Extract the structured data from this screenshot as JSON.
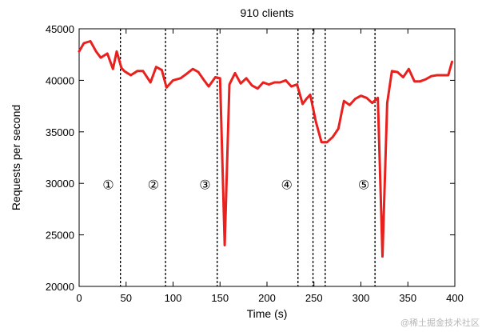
{
  "chart_data": {
    "type": "line",
    "title": "910 clients",
    "xlabel": "Time (s)",
    "ylabel": "Requests per second",
    "xlim": [
      0,
      400
    ],
    "ylim": [
      20000,
      45000
    ],
    "x_ticks": [
      0,
      50,
      100,
      150,
      200,
      250,
      300,
      350,
      400
    ],
    "y_ticks": [
      20000,
      25000,
      30000,
      35000,
      40000,
      45000
    ],
    "grid": false,
    "legend": "none",
    "line_color": "#e8201e",
    "series": [
      {
        "x": [
          0,
          5,
          12,
          18,
          23,
          30,
          36,
          40,
          45,
          48,
          55,
          62,
          68,
          76,
          82,
          88,
          93,
          100,
          108,
          114,
          121,
          127,
          133,
          138,
          145,
          150,
          155,
          160,
          166,
          172,
          178,
          184,
          190,
          196,
          202,
          208,
          214,
          220,
          226,
          232,
          238,
          242,
          246,
          252,
          258,
          264,
          270,
          276,
          282,
          288,
          294,
          300,
          306,
          312,
          318,
          323,
          328,
          333,
          339,
          345,
          351,
          357,
          363,
          369,
          375,
          381,
          388,
          393,
          397
        ],
        "y": [
          42800,
          43600,
          43800,
          42800,
          42200,
          42600,
          41100,
          42800,
          41200,
          40900,
          40500,
          40900,
          40900,
          39800,
          41300,
          41000,
          39300,
          40000,
          40200,
          40600,
          41100,
          40800,
          40000,
          39400,
          40300,
          40200,
          24000,
          39600,
          40700,
          39700,
          40200,
          39500,
          39200,
          39800,
          39600,
          39800,
          39800,
          40000,
          39400,
          39600,
          37700,
          38200,
          38600,
          36000,
          34000,
          34000,
          34500,
          35300,
          38000,
          37600,
          38200,
          38500,
          38300,
          37800,
          38300,
          22900,
          37800,
          40900,
          40800,
          40300,
          41100,
          39900,
          39900,
          40100,
          40400,
          40500,
          40500,
          40500,
          41800
        ]
      }
    ],
    "markers": [
      44,
      92,
      147,
      233,
      249,
      262,
      315
    ],
    "phase_labels": [
      {
        "label": "①",
        "x": 31,
        "y": 29900
      },
      {
        "label": "②",
        "x": 79,
        "y": 29900
      },
      {
        "label": "③",
        "x": 134,
        "y": 29900
      },
      {
        "label": "④",
        "x": 221,
        "y": 29900
      },
      {
        "label": "⑤",
        "x": 303,
        "y": 29900
      }
    ]
  },
  "watermark": "@稀土掘金技术社区"
}
